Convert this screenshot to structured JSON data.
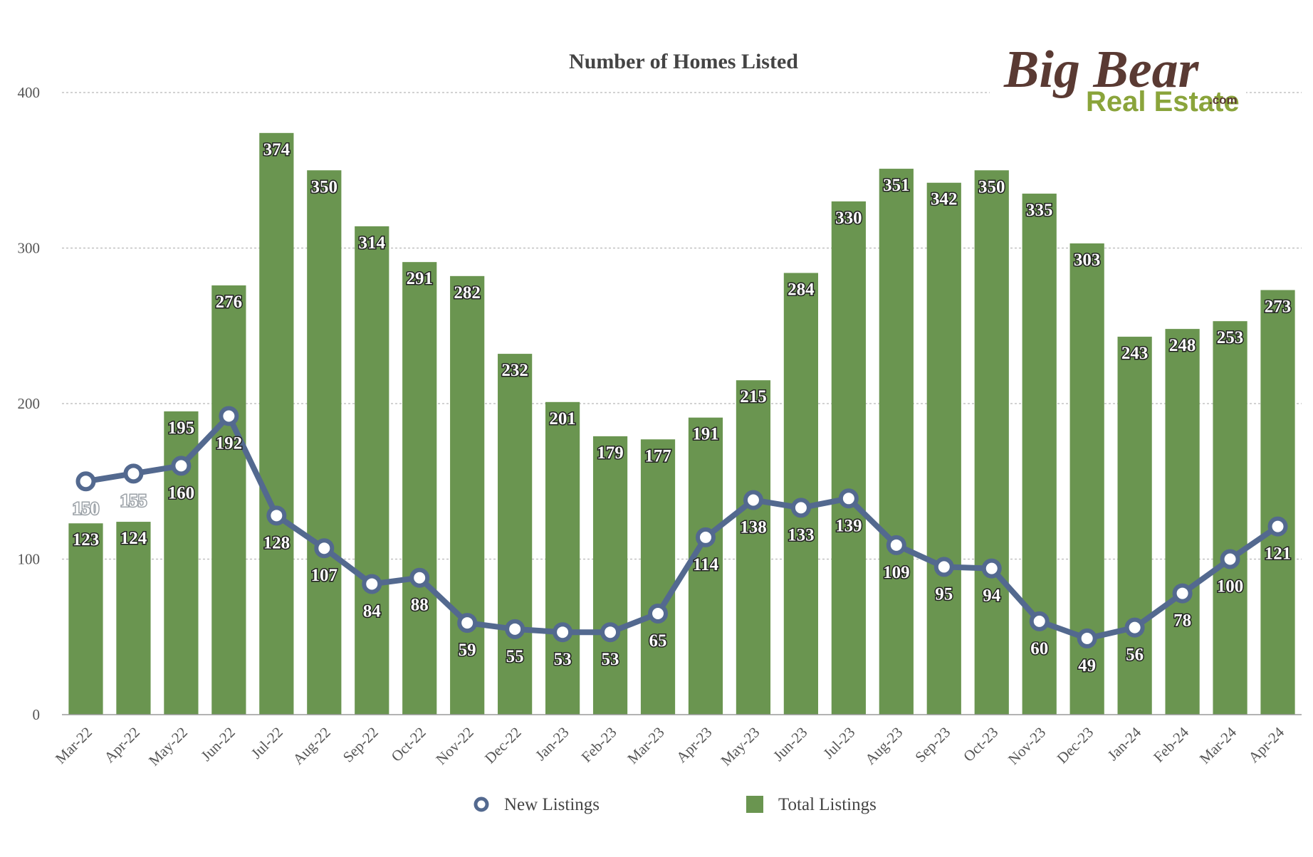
{
  "chart_data": {
    "type": "bar+line",
    "title": "Number of Homes Listed",
    "categories": [
      "Mar-22",
      "Apr-22",
      "May-22",
      "Jun-22",
      "Jul-22",
      "Aug-22",
      "Sep-22",
      "Oct-22",
      "Nov-22",
      "Dec-22",
      "Jan-23",
      "Feb-23",
      "Mar-23",
      "Apr-23",
      "May-23",
      "Jun-23",
      "Jul-23",
      "Aug-23",
      "Sep-23",
      "Oct-23",
      "Nov-23",
      "Dec-23",
      "Jan-24",
      "Feb-24",
      "Mar-24",
      "Apr-24"
    ],
    "series": [
      {
        "name": "Total Listings",
        "kind": "bar",
        "color": "#6a9550",
        "values": [
          123,
          124,
          195,
          276,
          374,
          350,
          314,
          291,
          282,
          232,
          201,
          179,
          177,
          191,
          215,
          284,
          330,
          351,
          342,
          350,
          335,
          303,
          243,
          248,
          253,
          273
        ]
      },
      {
        "name": "New Listings",
        "kind": "line",
        "color": "#53698f",
        "values": [
          150,
          155,
          160,
          192,
          128,
          107,
          84,
          88,
          59,
          55,
          53,
          53,
          65,
          114,
          138,
          133,
          139,
          109,
          95,
          94,
          60,
          49,
          56,
          78,
          100,
          121
        ]
      }
    ],
    "ylim": [
      0,
      400
    ],
    "yticks": [
      0,
      100,
      200,
      300,
      400
    ],
    "xlabel": "",
    "ylabel": "",
    "grid": true,
    "legend_position": "bottom"
  },
  "logo": {
    "line1": "Big Bear",
    "line2": "Real Estate",
    "suffix": ".com"
  }
}
